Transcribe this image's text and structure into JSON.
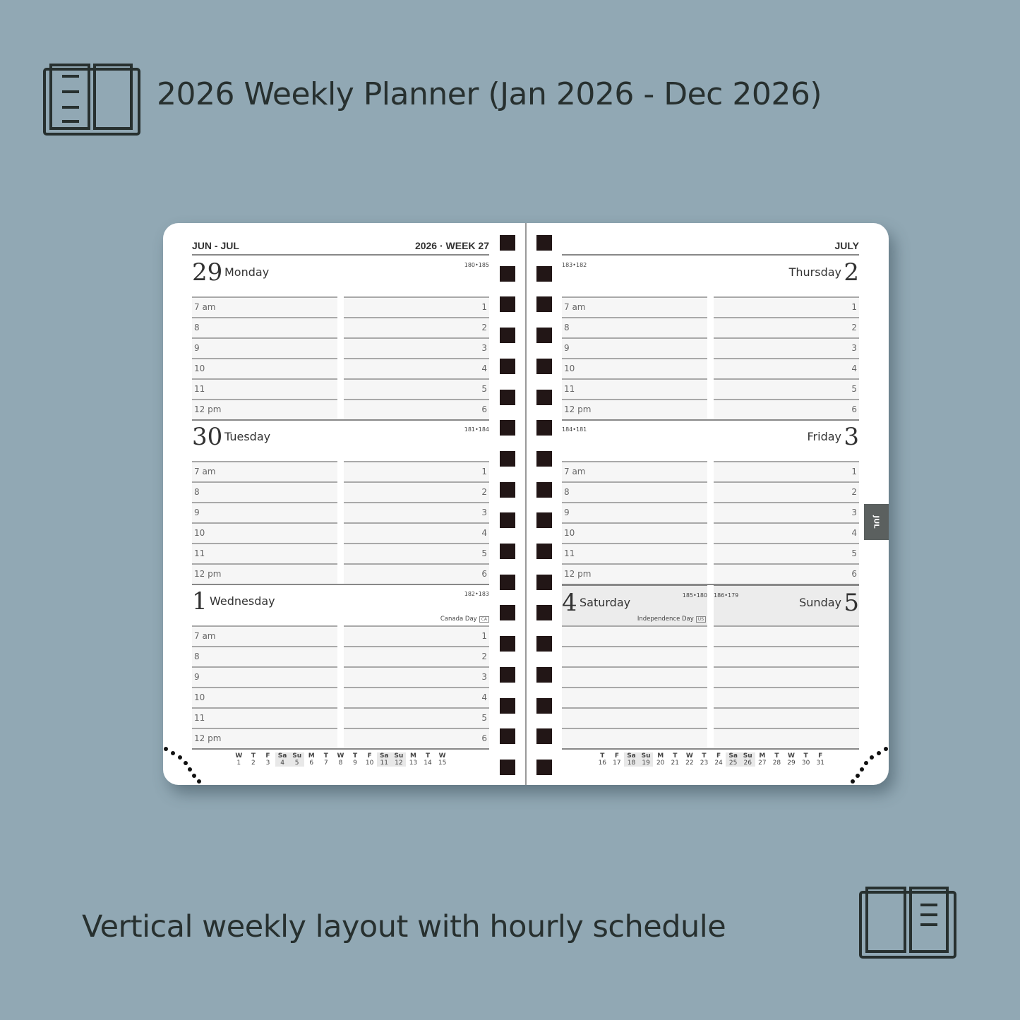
{
  "title": "2026 Weekly Planner (Jan 2026 - Dec 2026)",
  "subtitle": "Vertical weekly layout with hourly schedule",
  "icons": {
    "top": "open-book-notes-left-icon",
    "bottom": "open-book-notes-right-icon"
  },
  "colors": {
    "background": "#91a8b4",
    "text": "#27302f",
    "binding": "#221616",
    "tab": "#5b605f",
    "weekend_fill": "#ececec"
  },
  "planner": {
    "left_header": {
      "months": "JUN - JUL",
      "week": "2026 · WEEK 27"
    },
    "right_header": {
      "month": "JULY"
    },
    "tab_label": "JUL",
    "hours": [
      "7 am",
      "8",
      "9",
      "10",
      "11",
      "12 pm"
    ],
    "slots": [
      "1",
      "2",
      "3",
      "4",
      "5",
      "6"
    ],
    "left_days": [
      {
        "num": "29",
        "name": "Monday",
        "count": "180•185",
        "holiday": ""
      },
      {
        "num": "30",
        "name": "Tuesday",
        "count": "181•184",
        "holiday": ""
      },
      {
        "num": "1",
        "name": "Wednesday",
        "count": "182•183",
        "holiday": "Canada Day",
        "holiday_code": "CA"
      }
    ],
    "right_days": [
      {
        "num": "2",
        "name": "Thursday",
        "count": "183•182"
      },
      {
        "num": "3",
        "name": "Friday",
        "count": "184•181"
      }
    ],
    "weekend": [
      {
        "num": "4",
        "name": "Saturday",
        "count": "185•180",
        "holiday": "Independence Day",
        "holiday_code": "US"
      },
      {
        "num": "5",
        "name": "Sunday",
        "count": "186•179"
      }
    ],
    "mini_left": [
      [
        "W",
        "1"
      ],
      [
        "T",
        "2"
      ],
      [
        "F",
        "3"
      ],
      [
        "Sa",
        "4"
      ],
      [
        "Su",
        "5"
      ],
      [
        "M",
        "6"
      ],
      [
        "T",
        "7"
      ],
      [
        "W",
        "8"
      ],
      [
        "T",
        "9"
      ],
      [
        "F",
        "10"
      ],
      [
        "Sa",
        "11"
      ],
      [
        "Su",
        "12"
      ],
      [
        "M",
        "13"
      ],
      [
        "T",
        "14"
      ],
      [
        "W",
        "15"
      ]
    ],
    "mini_right": [
      [
        "T",
        "16"
      ],
      [
        "F",
        "17"
      ],
      [
        "Sa",
        "18"
      ],
      [
        "Su",
        "19"
      ],
      [
        "M",
        "20"
      ],
      [
        "T",
        "21"
      ],
      [
        "W",
        "22"
      ],
      [
        "T",
        "23"
      ],
      [
        "F",
        "24"
      ],
      [
        "Sa",
        "25"
      ],
      [
        "Su",
        "26"
      ],
      [
        "M",
        "27"
      ],
      [
        "T",
        "28"
      ],
      [
        "W",
        "29"
      ],
      [
        "T",
        "30"
      ],
      [
        "F",
        "31"
      ]
    ]
  }
}
